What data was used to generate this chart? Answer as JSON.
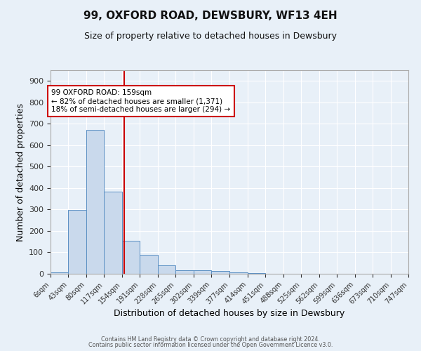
{
  "title": "99, OXFORD ROAD, DEWSBURY, WF13 4EH",
  "subtitle": "Size of property relative to detached houses in Dewsbury",
  "xlabel": "Distribution of detached houses by size in Dewsbury",
  "ylabel": "Number of detached properties",
  "bin_labels": [
    "6sqm",
    "43sqm",
    "80sqm",
    "117sqm",
    "154sqm",
    "191sqm",
    "228sqm",
    "265sqm",
    "302sqm",
    "339sqm",
    "377sqm",
    "414sqm",
    "451sqm",
    "488sqm",
    "525sqm",
    "562sqm",
    "599sqm",
    "636sqm",
    "673sqm",
    "710sqm",
    "747sqm"
  ],
  "bin_edges": [
    6,
    43,
    80,
    117,
    154,
    191,
    228,
    265,
    302,
    339,
    377,
    414,
    451,
    488,
    525,
    562,
    599,
    636,
    673,
    710,
    747
  ],
  "bar_heights": [
    6,
    297,
    672,
    382,
    154,
    90,
    38,
    17,
    17,
    13,
    7,
    2,
    0,
    0,
    0,
    0,
    0,
    0,
    0,
    0
  ],
  "bar_color": "#c9d9ec",
  "bar_edge_color": "#5a8fc3",
  "property_value": 159,
  "vline_color": "#cc0000",
  "annotation_text": "99 OXFORD ROAD: 159sqm\n← 82% of detached houses are smaller (1,371)\n18% of semi-detached houses are larger (294) →",
  "annotation_box_color": "#ffffff",
  "annotation_box_edge_color": "#cc0000",
  "ylim": [
    0,
    950
  ],
  "yticks": [
    0,
    100,
    200,
    300,
    400,
    500,
    600,
    700,
    800,
    900
  ],
  "background_color": "#e8f0f8",
  "grid_color": "#ffffff",
  "footer_line1": "Contains HM Land Registry data © Crown copyright and database right 2024.",
  "footer_line2": "Contains public sector information licensed under the Open Government Licence v3.0."
}
